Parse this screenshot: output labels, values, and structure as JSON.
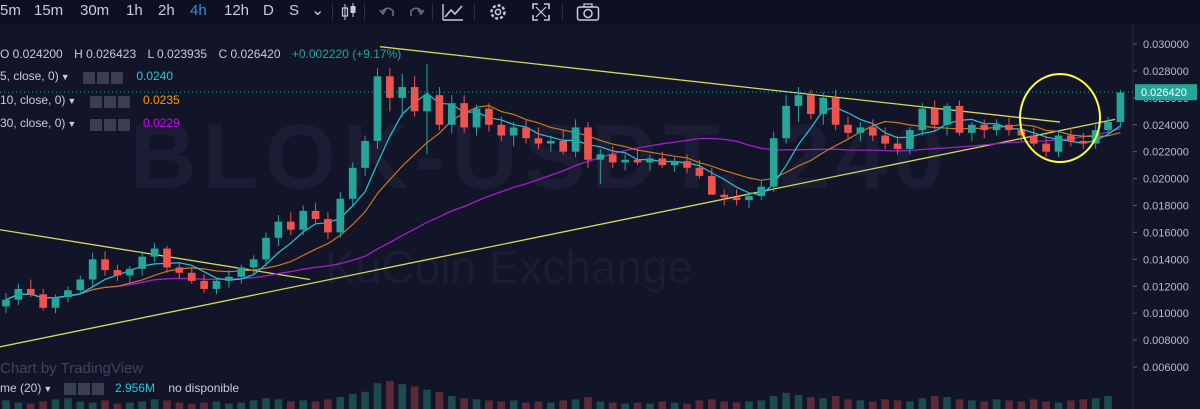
{
  "toolbar": {
    "timeframes": [
      "5m",
      "15m",
      "30m",
      "1h",
      "2h",
      "4h",
      "12h",
      "D",
      "S"
    ],
    "active": "4h",
    "dropdown": "⌄",
    "icons": [
      "candles-icon",
      "undo-icon",
      "redo-icon",
      "compare-icon",
      "settings-icon",
      "fullscreen-icon",
      "snapshot-icon"
    ]
  },
  "ohlc": {
    "o": "O 0.024200",
    "h": "H 0.026423",
    "l": "L 0.023935",
    "c": "C 0.026420",
    "chg": "+0.002220 (+9.17%)"
  },
  "indicators": [
    {
      "label": "5, close, 0)",
      "value": "0.0240",
      "color": "#26c6da"
    },
    {
      "label": "10, close, 0)",
      "value": "0.0235",
      "color": "#ff9800"
    },
    {
      "label": "30, close, 0)",
      "value": "0.0229",
      "color": "#d500f9"
    }
  ],
  "volume": {
    "label": "me (20)",
    "value": "2.956M",
    "extra": "no disponible"
  },
  "attribution": "Chart by TradingView",
  "watermark": {
    "symbol": "BLOK-USDT, 240",
    "exchange": "KuCoin Exchange"
  },
  "colors": {
    "up": "#26a69a",
    "down": "#ef5350",
    "trend": "#d8d85a",
    "ma5": "#26c6da",
    "ma10": "#c87a1e",
    "ma30": "#a020c8",
    "highlight": "#ffff40"
  },
  "chart_data": {
    "type": "candlestick",
    "y_axis_ticks": [
      "0.030000",
      "0.028000",
      "0.026000",
      "0.024000",
      "0.022000",
      "0.020000",
      "0.018000",
      "0.016000",
      "0.014000",
      "0.012000",
      "0.010000",
      "0.008000",
      "0.006000"
    ],
    "ylim": [
      0.006,
      0.0305
    ],
    "last_price": "0.026420",
    "candles": [
      [
        0.0105,
        0.0115,
        0.01,
        0.011
      ],
      [
        0.011,
        0.0122,
        0.0106,
        0.0118
      ],
      [
        0.0118,
        0.0125,
        0.0112,
        0.0114
      ],
      [
        0.0114,
        0.0118,
        0.0102,
        0.0104
      ],
      [
        0.0104,
        0.0114,
        0.01,
        0.0112
      ],
      [
        0.0112,
        0.012,
        0.0108,
        0.0117
      ],
      [
        0.0117,
        0.0128,
        0.0114,
        0.0125
      ],
      [
        0.0125,
        0.0145,
        0.012,
        0.014
      ],
      [
        0.014,
        0.0146,
        0.0128,
        0.0132
      ],
      [
        0.0132,
        0.0136,
        0.0124,
        0.0128
      ],
      [
        0.0128,
        0.0135,
        0.0122,
        0.0133
      ],
      [
        0.0133,
        0.0146,
        0.0128,
        0.0142
      ],
      [
        0.0142,
        0.0152,
        0.0138,
        0.0148
      ],
      [
        0.0148,
        0.015,
        0.013,
        0.0134
      ],
      [
        0.0134,
        0.0138,
        0.0126,
        0.013
      ],
      [
        0.013,
        0.0134,
        0.0122,
        0.0124
      ],
      [
        0.0124,
        0.0129,
        0.0115,
        0.0118
      ],
      [
        0.0118,
        0.0126,
        0.0114,
        0.0124
      ],
      [
        0.0124,
        0.0132,
        0.0119,
        0.0127
      ],
      [
        0.0127,
        0.0136,
        0.0122,
        0.0134
      ],
      [
        0.0134,
        0.0143,
        0.0128,
        0.014
      ],
      [
        0.014,
        0.016,
        0.0135,
        0.0156
      ],
      [
        0.0156,
        0.0173,
        0.015,
        0.0168
      ],
      [
        0.0168,
        0.0175,
        0.0158,
        0.0162
      ],
      [
        0.0162,
        0.018,
        0.0158,
        0.0176
      ],
      [
        0.0176,
        0.0182,
        0.0166,
        0.017
      ],
      [
        0.017,
        0.0175,
        0.0155,
        0.016
      ],
      [
        0.016,
        0.019,
        0.0156,
        0.0185
      ],
      [
        0.0185,
        0.0212,
        0.018,
        0.0208
      ],
      [
        0.0208,
        0.0232,
        0.0202,
        0.0228
      ],
      [
        0.0228,
        0.0282,
        0.0222,
        0.0276
      ],
      [
        0.0276,
        0.0282,
        0.025,
        0.026
      ],
      [
        0.026,
        0.0278,
        0.0246,
        0.0268
      ],
      [
        0.0268,
        0.0276,
        0.0246,
        0.025
      ],
      [
        0.025,
        0.0285,
        0.0218,
        0.0262
      ],
      [
        0.0262,
        0.0268,
        0.0236,
        0.024
      ],
      [
        0.024,
        0.0262,
        0.0234,
        0.0256
      ],
      [
        0.0256,
        0.0262,
        0.0234,
        0.0238
      ],
      [
        0.0238,
        0.0255,
        0.0232,
        0.0252
      ],
      [
        0.0252,
        0.0256,
        0.0235,
        0.024
      ],
      [
        0.024,
        0.0246,
        0.0228,
        0.0232
      ],
      [
        0.0232,
        0.0242,
        0.0224,
        0.0238
      ],
      [
        0.0238,
        0.0244,
        0.0226,
        0.023
      ],
      [
        0.023,
        0.0238,
        0.0222,
        0.0226
      ],
      [
        0.0226,
        0.0232,
        0.022,
        0.0228
      ],
      [
        0.0228,
        0.0236,
        0.0218,
        0.022
      ],
      [
        0.022,
        0.0244,
        0.0216,
        0.0238
      ],
      [
        0.0238,
        0.0242,
        0.0208,
        0.0214
      ],
      [
        0.0214,
        0.0222,
        0.0196,
        0.0218
      ],
      [
        0.0218,
        0.0224,
        0.0208,
        0.0212
      ],
      [
        0.0212,
        0.0218,
        0.0206,
        0.0214
      ],
      [
        0.0214,
        0.0222,
        0.021,
        0.0212
      ],
      [
        0.0212,
        0.0218,
        0.0206,
        0.0215
      ],
      [
        0.0215,
        0.022,
        0.0208,
        0.021
      ],
      [
        0.021,
        0.0216,
        0.0205,
        0.0213
      ],
      [
        0.0213,
        0.0218,
        0.0204,
        0.0208
      ],
      [
        0.0208,
        0.0214,
        0.02,
        0.0202
      ],
      [
        0.0202,
        0.0208,
        0.019,
        0.0188
      ],
      [
        0.0188,
        0.0192,
        0.018,
        0.0186
      ],
      [
        0.0186,
        0.0192,
        0.018,
        0.0184
      ],
      [
        0.0184,
        0.019,
        0.0178,
        0.0187
      ],
      [
        0.0187,
        0.0198,
        0.0184,
        0.0194
      ],
      [
        0.0194,
        0.0235,
        0.019,
        0.023
      ],
      [
        0.023,
        0.0262,
        0.0226,
        0.0254
      ],
      [
        0.0254,
        0.0268,
        0.0242,
        0.0262
      ],
      [
        0.0262,
        0.0266,
        0.0244,
        0.0248
      ],
      [
        0.0248,
        0.0264,
        0.024,
        0.026
      ],
      [
        0.026,
        0.0266,
        0.0236,
        0.024
      ],
      [
        0.024,
        0.0246,
        0.023,
        0.0234
      ],
      [
        0.0234,
        0.0242,
        0.0228,
        0.0238
      ],
      [
        0.0238,
        0.0244,
        0.0228,
        0.0232
      ],
      [
        0.0232,
        0.0238,
        0.0222,
        0.0226
      ],
      [
        0.0226,
        0.0232,
        0.0218,
        0.0222
      ],
      [
        0.0222,
        0.0238,
        0.0218,
        0.0236
      ],
      [
        0.0236,
        0.0256,
        0.0232,
        0.0252
      ],
      [
        0.0252,
        0.0258,
        0.0236,
        0.024
      ],
      [
        0.024,
        0.0256,
        0.0232,
        0.0254
      ],
      [
        0.0254,
        0.0258,
        0.0232,
        0.0234
      ],
      [
        0.0234,
        0.0242,
        0.0228,
        0.024
      ],
      [
        0.024,
        0.0244,
        0.023,
        0.0236
      ],
      [
        0.0236,
        0.0244,
        0.0232,
        0.024
      ],
      [
        0.024,
        0.0245,
        0.0232,
        0.0236
      ],
      [
        0.0236,
        0.0242,
        0.0228,
        0.0232
      ],
      [
        0.0232,
        0.0238,
        0.0224,
        0.0226
      ],
      [
        0.0226,
        0.0232,
        0.0216,
        0.022
      ],
      [
        0.022,
        0.0236,
        0.0216,
        0.0232
      ],
      [
        0.0232,
        0.0238,
        0.0224,
        0.0228
      ],
      [
        0.0228,
        0.0234,
        0.0222,
        0.0226
      ],
      [
        0.0226,
        0.024,
        0.0222,
        0.0236
      ],
      [
        0.0236,
        0.0246,
        0.0232,
        0.0242
      ],
      [
        0.0242,
        0.0266,
        0.0238,
        0.0264
      ]
    ],
    "volumes": [
      0.8,
      0.6,
      0.5,
      0.7,
      0.9,
      1.0,
      0.7,
      0.6,
      0.8,
      0.5,
      0.6,
      0.7,
      0.9,
      0.8,
      0.6,
      0.5,
      0.6,
      0.7,
      0.5,
      0.6,
      0.8,
      1.0,
      0.9,
      0.7,
      0.8,
      0.7,
      0.9,
      1.1,
      1.4,
      1.6,
      2.4,
      2.6,
      2.3,
      2.1,
      1.8,
      1.6,
      1.2,
      1.0,
      0.9,
      0.8,
      0.7,
      0.8,
      0.6,
      0.7,
      0.6,
      0.8,
      0.9,
      1.1,
      0.7,
      0.6,
      0.5,
      0.6,
      0.5,
      0.7,
      0.6,
      0.5,
      0.8,
      0.9,
      0.7,
      0.6,
      0.7,
      0.8,
      1.2,
      1.5,
      1.3,
      1.1,
      1.0,
      1.2,
      0.9,
      0.8,
      0.7,
      0.9,
      0.8,
      0.7,
      1.0,
      1.2,
      1.1,
      0.9,
      0.8,
      0.7,
      0.9,
      0.8,
      0.7,
      0.9,
      0.7,
      0.6,
      0.8,
      0.9,
      1.0,
      1.2
    ]
  }
}
